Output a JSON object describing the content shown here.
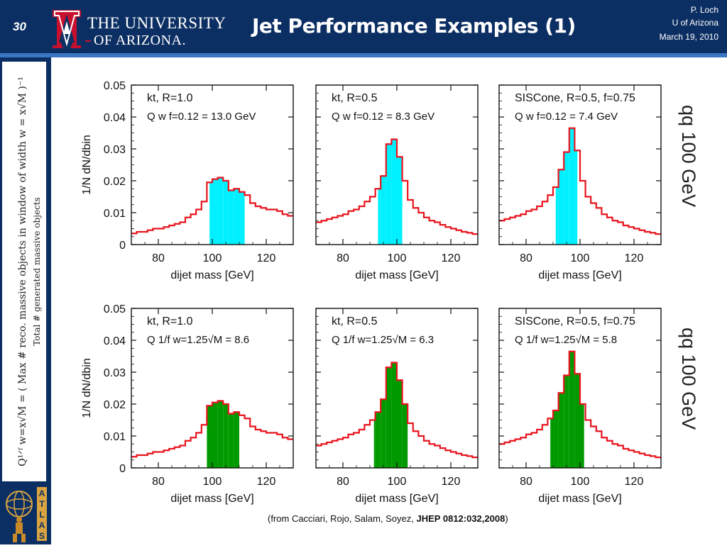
{
  "header": {
    "slide_number": "30",
    "university_line1": "THE UNIVERSITY",
    "university_line2": "OF ARIZONA.",
    "title": "Jet Performance Examples (1)",
    "author": "P. Loch",
    "institution": "U of Arizona",
    "date": "March 19, 2010",
    "colors": {
      "header_bg": "#0c2f63",
      "accent_line": "#3a76c4",
      "logo_red": "#c8102e"
    }
  },
  "sidebar": {
    "formula": "Q¹ᐟᶠ w=x√M = ( Max # reco. massive objects in window of width w = x√M )⁻¹",
    "formula_denominator": "Total # generated massive objects",
    "logo_letters": [
      "A",
      "T",
      "L",
      "A",
      "S"
    ]
  },
  "row_labels": [
    "qq 100 GeV",
    "qq 100 GeV"
  ],
  "citation": {
    "prefix": "(from Cacciari, Rojo, Salam, Soyez, ",
    "reference": "JHEP 0812:032,2008",
    "suffix": ")"
  },
  "chart_data": [
    {
      "type": "histogram",
      "row": 0,
      "col": 0,
      "annotation_line1": "kt, R=1.0",
      "annotation_line2": "Q w f=0.12 = 13.0 GeV",
      "xlabel": "dijet mass [GeV]",
      "ylabel": "1/N dN/dbin",
      "xlim": [
        70,
        130
      ],
      "ylim": [
        0,
        0.05
      ],
      "xticks": [
        80,
        100,
        120
      ],
      "yticks": [
        0,
        0.01,
        0.02,
        0.03,
        0.04,
        0.05
      ],
      "bin_width": 2,
      "x": [
        70,
        72,
        74,
        76,
        78,
        80,
        82,
        84,
        86,
        88,
        90,
        92,
        94,
        96,
        98,
        100,
        102,
        104,
        106,
        108,
        110,
        112,
        114,
        116,
        118,
        120,
        122,
        124,
        126,
        128
      ],
      "values": [
        0.0035,
        0.004,
        0.004,
        0.0045,
        0.005,
        0.005,
        0.0055,
        0.006,
        0.0065,
        0.007,
        0.0085,
        0.0095,
        0.011,
        0.0135,
        0.0195,
        0.0205,
        0.021,
        0.02,
        0.017,
        0.0175,
        0.0165,
        0.0155,
        0.013,
        0.012,
        0.0115,
        0.011,
        0.011,
        0.0105,
        0.0095,
        0.009
      ],
      "shaded_range": [
        99,
        112
      ],
      "line_color": "#e8141e",
      "fill_color": "#00f0ff"
    },
    {
      "type": "histogram",
      "row": 0,
      "col": 1,
      "annotation_line1": "kt, R=0.5",
      "annotation_line2": "Q w f=0.12 = 8.3 GeV",
      "xlabel": "dijet mass [GeV]",
      "ylabel": "1/N dN/dbin",
      "xlim": [
        70,
        130
      ],
      "ylim": [
        0,
        0.05
      ],
      "xticks": [
        80,
        100,
        120
      ],
      "yticks": [
        0,
        0.01,
        0.02,
        0.03,
        0.04,
        0.05
      ],
      "bin_width": 2,
      "x": [
        70,
        72,
        74,
        76,
        78,
        80,
        82,
        84,
        86,
        88,
        90,
        92,
        94,
        96,
        98,
        100,
        102,
        104,
        106,
        108,
        110,
        112,
        114,
        116,
        118,
        120,
        122,
        124,
        126,
        128
      ],
      "values": [
        0.007,
        0.0075,
        0.008,
        0.0085,
        0.009,
        0.0095,
        0.0105,
        0.011,
        0.012,
        0.0135,
        0.015,
        0.0175,
        0.0215,
        0.0315,
        0.033,
        0.0275,
        0.02,
        0.014,
        0.0115,
        0.01,
        0.0085,
        0.0075,
        0.007,
        0.0062,
        0.0055,
        0.005,
        0.0045,
        0.004,
        0.0037,
        0.0033
      ],
      "shaded_range": [
        93,
        102
      ],
      "line_color": "#e8141e",
      "fill_color": "#00f0ff"
    },
    {
      "type": "histogram",
      "row": 0,
      "col": 2,
      "annotation_line1": "SISCone, R=0.5, f=0.75",
      "annotation_line2": "Q w f=0.12 = 7.4 GeV",
      "xlabel": "dijet mass [GeV]",
      "ylabel": "1/N dN/dbin",
      "xlim": [
        70,
        130
      ],
      "ylim": [
        0,
        0.05
      ],
      "xticks": [
        80,
        100,
        120
      ],
      "yticks": [
        0,
        0.01,
        0.02,
        0.03,
        0.04,
        0.05
      ],
      "bin_width": 2,
      "x": [
        70,
        72,
        74,
        76,
        78,
        80,
        82,
        84,
        86,
        88,
        90,
        92,
        94,
        96,
        98,
        100,
        102,
        104,
        106,
        108,
        110,
        112,
        114,
        116,
        118,
        120,
        122,
        124,
        126,
        128
      ],
      "values": [
        0.0075,
        0.008,
        0.0085,
        0.009,
        0.0095,
        0.0105,
        0.011,
        0.012,
        0.0135,
        0.0155,
        0.018,
        0.0235,
        0.029,
        0.0365,
        0.0295,
        0.02,
        0.015,
        0.013,
        0.0115,
        0.0095,
        0.0085,
        0.0075,
        0.007,
        0.006,
        0.0055,
        0.005,
        0.0045,
        0.004,
        0.0037,
        0.0033
      ],
      "shaded_range": [
        91,
        99
      ],
      "line_color": "#e8141e",
      "fill_color": "#00f0ff"
    },
    {
      "type": "histogram",
      "row": 1,
      "col": 0,
      "annotation_line1": "kt, R=1.0",
      "annotation_line2": "Q 1/f w=1.25√M = 8.6",
      "xlabel": "dijet mass [GeV]",
      "ylabel": "1/N dN/dbin",
      "xlim": [
        70,
        130
      ],
      "ylim": [
        0,
        0.05
      ],
      "xticks": [
        80,
        100,
        120
      ],
      "yticks": [
        0,
        0.01,
        0.02,
        0.03,
        0.04,
        0.05
      ],
      "bin_width": 2,
      "x": [
        70,
        72,
        74,
        76,
        78,
        80,
        82,
        84,
        86,
        88,
        90,
        92,
        94,
        96,
        98,
        100,
        102,
        104,
        106,
        108,
        110,
        112,
        114,
        116,
        118,
        120,
        122,
        124,
        126,
        128
      ],
      "values": [
        0.0035,
        0.004,
        0.004,
        0.0045,
        0.005,
        0.005,
        0.0055,
        0.006,
        0.0065,
        0.007,
        0.0085,
        0.0095,
        0.011,
        0.0135,
        0.0195,
        0.0205,
        0.021,
        0.02,
        0.017,
        0.0175,
        0.0165,
        0.0155,
        0.013,
        0.012,
        0.0115,
        0.011,
        0.011,
        0.0105,
        0.0095,
        0.009
      ],
      "shaded_range": [
        98,
        110
      ],
      "line_color": "#e8141e",
      "fill_color": "#009a00"
    },
    {
      "type": "histogram",
      "row": 1,
      "col": 1,
      "annotation_line1": "kt, R=0.5",
      "annotation_line2": "Q 1/f w=1.25√M = 6.3",
      "xlabel": "dijet mass [GeV]",
      "ylabel": "1/N dN/dbin",
      "xlim": [
        70,
        130
      ],
      "ylim": [
        0,
        0.05
      ],
      "xticks": [
        80,
        100,
        120
      ],
      "yticks": [
        0,
        0.01,
        0.02,
        0.03,
        0.04,
        0.05
      ],
      "bin_width": 2,
      "x": [
        70,
        72,
        74,
        76,
        78,
        80,
        82,
        84,
        86,
        88,
        90,
        92,
        94,
        96,
        98,
        100,
        102,
        104,
        106,
        108,
        110,
        112,
        114,
        116,
        118,
        120,
        122,
        124,
        126,
        128
      ],
      "values": [
        0.007,
        0.0075,
        0.008,
        0.0085,
        0.009,
        0.0095,
        0.0105,
        0.011,
        0.012,
        0.0135,
        0.015,
        0.0175,
        0.0215,
        0.0315,
        0.033,
        0.0275,
        0.02,
        0.014,
        0.0115,
        0.01,
        0.0085,
        0.0075,
        0.007,
        0.0062,
        0.0055,
        0.005,
        0.0045,
        0.004,
        0.0037,
        0.0033
      ],
      "shaded_range": [
        91.5,
        104
      ],
      "line_color": "#e8141e",
      "fill_color": "#009a00"
    },
    {
      "type": "histogram",
      "row": 1,
      "col": 2,
      "annotation_line1": "SISCone, R=0.5, f=0.75",
      "annotation_line2": "Q 1/f w=1.25√M = 5.8",
      "xlabel": "dijet mass [GeV]",
      "ylabel": "1/N dN/dbin",
      "xlim": [
        70,
        130
      ],
      "ylim": [
        0,
        0.05
      ],
      "xticks": [
        80,
        100,
        120
      ],
      "yticks": [
        0,
        0.01,
        0.02,
        0.03,
        0.04,
        0.05
      ],
      "bin_width": 2,
      "x": [
        70,
        72,
        74,
        76,
        78,
        80,
        82,
        84,
        86,
        88,
        90,
        92,
        94,
        96,
        98,
        100,
        102,
        104,
        106,
        108,
        110,
        112,
        114,
        116,
        118,
        120,
        122,
        124,
        126,
        128
      ],
      "values": [
        0.0075,
        0.008,
        0.0085,
        0.009,
        0.0095,
        0.0105,
        0.011,
        0.012,
        0.0135,
        0.0155,
        0.018,
        0.0235,
        0.029,
        0.0365,
        0.0295,
        0.02,
        0.015,
        0.013,
        0.0115,
        0.0095,
        0.0085,
        0.0075,
        0.007,
        0.006,
        0.0055,
        0.005,
        0.0045,
        0.004,
        0.0037,
        0.0033
      ],
      "shaded_range": [
        89,
        101.5
      ],
      "line_color": "#e8141e",
      "fill_color": "#009a00"
    }
  ]
}
